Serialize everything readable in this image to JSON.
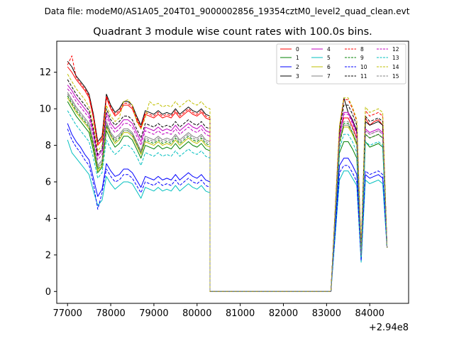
{
  "suptitle": "Data file: modeM0/AS1A05_204T01_9000002856_19354cztM0_level2_quad_clean.evt",
  "chart_data": {
    "type": "line",
    "title": "Quadrant 3 module wise count rates with 100.0s bins.",
    "xlabel": "",
    "ylabel": "",
    "x_offset_label": "+2.94e8",
    "xlim": [
      76750,
      84900
    ],
    "ylim": [
      -0.65,
      13.7
    ],
    "xticks": [
      77000,
      78000,
      79000,
      80000,
      81000,
      82000,
      83000,
      84000
    ],
    "xtick_labels": [
      "77000",
      "78000",
      "79000",
      "80000",
      "81000",
      "82000",
      "83000",
      "84000"
    ],
    "yticks": [
      0,
      2,
      4,
      6,
      8,
      10,
      12
    ],
    "ytick_labels": [
      "0",
      "2",
      "4",
      "6",
      "8",
      "10",
      "12"
    ],
    "legend_location": "top-right",
    "legend_columns": 4,
    "segments": [
      {
        "x_start": 77000,
        "x_end": 80300,
        "step": 100
      },
      {
        "x_start": 80300,
        "x_end": 83100,
        "step": 100
      },
      {
        "x_start": 83100,
        "x_end": 84500,
        "step": 100
      }
    ],
    "series": [
      {
        "name": "0",
        "color": "#ff0000",
        "dashed": false,
        "seg1": [
          12.3,
          12.0,
          11.6,
          11.3,
          11.0,
          10.6,
          9.5,
          8.0,
          8.3,
          10.6,
          10.0,
          9.6,
          9.8,
          10.2,
          10.2,
          10.0,
          9.4,
          8.9,
          9.7,
          9.6,
          9.5,
          9.7,
          9.5,
          9.6,
          9.5,
          9.8,
          9.5,
          9.7,
          9.9,
          9.7,
          9.6,
          9.8,
          9.5,
          9.4
        ],
        "seg3": [
          8.7,
          9.5,
          9.5,
          9.0,
          8.4,
          2.2,
          9.5,
          9.1,
          9.3,
          9.4,
          9.1,
          2.4
        ]
      },
      {
        "name": "1",
        "color": "#008000",
        "dashed": false,
        "seg1": [
          10.4,
          10.0,
          9.6,
          9.3,
          9.0,
          8.7,
          7.7,
          6.5,
          6.8,
          8.8,
          8.3,
          7.9,
          8.1,
          8.5,
          8.5,
          8.3,
          7.8,
          7.3,
          8.0,
          7.9,
          7.8,
          8.0,
          7.8,
          7.9,
          7.8,
          8.1,
          7.8,
          8.0,
          8.2,
          8.0,
          7.9,
          8.1,
          7.8,
          7.7
        ],
        "seg3": [
          7.6,
          8.2,
          8.2,
          7.8,
          7.3,
          1.8,
          8.2,
          7.9,
          8.0,
          8.1,
          7.9,
          2.4
        ]
      },
      {
        "name": "2",
        "color": "#0000ff",
        "dashed": false,
        "seg1": [
          9.2,
          8.6,
          8.2,
          7.9,
          7.5,
          7.2,
          6.2,
          5.2,
          5.6,
          7.0,
          6.6,
          6.3,
          6.4,
          6.7,
          6.7,
          6.5,
          6.1,
          5.7,
          6.3,
          6.2,
          6.1,
          6.3,
          6.1,
          6.2,
          6.1,
          6.4,
          6.1,
          6.3,
          6.5,
          6.3,
          6.2,
          6.4,
          6.1,
          6.0
        ],
        "seg3": [
          6.9,
          7.3,
          7.3,
          6.9,
          6.4,
          1.8,
          6.4,
          6.2,
          6.3,
          6.4,
          6.2,
          2.4
        ]
      },
      {
        "name": "3",
        "color": "#000000",
        "dashed": false,
        "seg1": [
          12.6,
          12.3,
          11.8,
          11.5,
          11.2,
          10.8,
          9.7,
          8.2,
          8.5,
          10.8,
          10.2,
          9.8,
          10.0,
          10.4,
          10.4,
          10.2,
          9.6,
          9.1,
          9.9,
          9.8,
          9.7,
          9.9,
          9.7,
          9.8,
          9.7,
          10.0,
          9.7,
          9.9,
          10.1,
          9.9,
          9.8,
          10.0,
          9.7,
          9.6
        ],
        "seg3": [
          8.9,
          10.6,
          9.8,
          9.4,
          8.8,
          2.0,
          9.3,
          9.1,
          9.2,
          9.3,
          9.1,
          2.4
        ]
      },
      {
        "name": "4",
        "color": "#bf00bf",
        "dashed": false,
        "seg1": [
          11.3,
          11.0,
          10.6,
          10.3,
          10.0,
          9.7,
          8.7,
          7.4,
          7.7,
          9.8,
          9.2,
          8.9,
          9.1,
          9.4,
          9.4,
          9.2,
          8.7,
          8.2,
          9.0,
          8.9,
          8.8,
          9.0,
          8.8,
          8.9,
          8.8,
          9.1,
          8.8,
          9.0,
          9.2,
          9.0,
          8.9,
          9.1,
          8.8,
          8.7
        ],
        "seg3": [
          8.5,
          9.8,
          9.8,
          9.3,
          8.7,
          2.1,
          8.9,
          8.7,
          8.8,
          8.9,
          8.7,
          2.4
        ]
      },
      {
        "name": "5",
        "color": "#00bfbf",
        "dashed": false,
        "seg1": [
          8.3,
          7.6,
          7.3,
          7.0,
          6.7,
          6.4,
          5.5,
          4.7,
          5.0,
          6.3,
          5.9,
          5.6,
          5.8,
          6.0,
          6.0,
          5.9,
          5.5,
          5.1,
          5.7,
          5.6,
          5.5,
          5.7,
          5.5,
          5.6,
          5.5,
          5.8,
          5.5,
          5.7,
          5.9,
          5.7,
          5.6,
          5.8,
          5.5,
          5.4
        ],
        "seg3": [
          6.1,
          6.6,
          6.6,
          6.2,
          5.8,
          1.6,
          6.1,
          5.9,
          6.0,
          6.1,
          5.9,
          2.4
        ]
      },
      {
        "name": "6",
        "color": "#bfbf00",
        "dashed": false,
        "seg1": [
          10.6,
          10.2,
          9.8,
          9.5,
          9.2,
          8.9,
          7.9,
          6.6,
          6.9,
          9.0,
          8.5,
          8.1,
          8.3,
          8.7,
          8.7,
          8.5,
          8.0,
          7.5,
          8.2,
          8.1,
          8.0,
          8.2,
          8.0,
          8.1,
          8.0,
          8.3,
          8.0,
          8.2,
          8.4,
          8.2,
          8.1,
          8.3,
          8.0,
          7.9
        ],
        "seg3": [
          8.2,
          9.0,
          9.0,
          8.6,
          8.0,
          1.9,
          8.6,
          8.4,
          8.5,
          8.6,
          8.4,
          2.4
        ]
      },
      {
        "name": "7",
        "color": "#808080",
        "dashed": false,
        "seg1": [
          10.9,
          10.5,
          10.1,
          9.8,
          9.5,
          9.2,
          8.2,
          6.9,
          7.2,
          9.3,
          8.7,
          8.4,
          8.6,
          8.9,
          8.9,
          8.7,
          8.2,
          7.7,
          8.5,
          8.4,
          8.3,
          8.5,
          8.3,
          8.4,
          8.3,
          8.6,
          8.3,
          8.5,
          8.7,
          8.5,
          8.4,
          8.6,
          8.3,
          8.2
        ],
        "seg3": [
          8.3,
          9.1,
          9.1,
          8.7,
          8.1,
          2.0,
          8.6,
          8.4,
          8.5,
          8.6,
          8.4,
          2.4
        ]
      },
      {
        "name": "8",
        "color": "#ff0000",
        "dashed": true,
        "seg1": [
          12.4,
          12.9,
          11.7,
          11.4,
          11.1,
          10.7,
          9.6,
          8.1,
          8.4,
          10.7,
          10.1,
          9.7,
          9.9,
          10.3,
          10.3,
          10.1,
          9.5,
          9.0,
          9.8,
          9.7,
          9.6,
          9.8,
          9.6,
          9.7,
          9.6,
          9.9,
          9.6,
          9.8,
          10.0,
          9.8,
          9.7,
          9.9,
          9.6,
          9.5
        ],
        "seg3": [
          9.0,
          10.5,
          10.5,
          10.0,
          9.3,
          2.3,
          9.9,
          9.6,
          9.7,
          9.8,
          9.6,
          2.4
        ]
      },
      {
        "name": "9",
        "color": "#008000",
        "dashed": true,
        "seg1": [
          10.7,
          10.3,
          9.9,
          9.6,
          9.3,
          9.0,
          8.0,
          6.7,
          7.0,
          9.1,
          8.6,
          8.2,
          8.4,
          8.8,
          8.8,
          8.6,
          8.1,
          7.6,
          8.3,
          8.2,
          8.1,
          8.3,
          8.1,
          8.2,
          8.1,
          8.4,
          8.1,
          8.3,
          8.5,
          8.3,
          8.2,
          8.4,
          8.1,
          8.0
        ],
        "seg3": [
          8.0,
          9.2,
          9.2,
          8.7,
          8.1,
          2.0,
          8.6,
          8.4,
          8.5,
          8.6,
          8.4,
          2.4
        ]
      },
      {
        "name": "10",
        "color": "#0000ff",
        "dashed": true,
        "seg1": [
          8.9,
          8.3,
          7.9,
          7.6,
          7.2,
          6.9,
          5.9,
          4.5,
          5.4,
          6.7,
          6.3,
          6.0,
          6.1,
          6.4,
          6.4,
          6.2,
          5.8,
          5.4,
          6.0,
          5.9,
          5.8,
          6.0,
          5.8,
          5.9,
          5.8,
          6.1,
          5.8,
          6.0,
          6.2,
          6.0,
          5.9,
          6.1,
          5.8,
          5.7
        ],
        "seg3": [
          6.5,
          6.9,
          6.9,
          6.5,
          6.0,
          1.7,
          6.6,
          6.4,
          6.5,
          6.6,
          6.4,
          2.4
        ]
      },
      {
        "name": "11",
        "color": "#000000",
        "dashed": true,
        "seg1": [
          11.6,
          11.2,
          10.8,
          10.5,
          10.2,
          9.9,
          8.9,
          7.5,
          7.8,
          10.0,
          9.4,
          9.1,
          9.3,
          9.6,
          9.6,
          9.4,
          8.9,
          8.4,
          9.2,
          9.1,
          9.0,
          9.2,
          9.0,
          9.1,
          9.0,
          9.3,
          9.0,
          9.2,
          9.4,
          9.2,
          9.1,
          9.3,
          9.0,
          8.9
        ],
        "seg3": [
          8.8,
          10.2,
          10.2,
          9.7,
          9.1,
          2.2,
          9.6,
          9.3,
          9.4,
          9.5,
          9.3,
          2.4
        ]
      },
      {
        "name": "12",
        "color": "#bf00bf",
        "dashed": true,
        "seg1": [
          11.1,
          10.8,
          10.4,
          10.1,
          9.8,
          9.5,
          8.5,
          7.2,
          7.5,
          9.6,
          9.0,
          8.7,
          8.9,
          9.2,
          9.2,
          9.0,
          8.5,
          8.0,
          8.8,
          8.7,
          8.6,
          8.8,
          8.6,
          8.7,
          8.6,
          8.9,
          8.6,
          8.8,
          9.0,
          8.8,
          8.7,
          8.9,
          8.6,
          8.5
        ],
        "seg3": [
          8.4,
          9.7,
          9.7,
          9.2,
          8.6,
          2.1,
          8.8,
          8.6,
          8.7,
          8.8,
          8.6,
          2.4
        ]
      },
      {
        "name": "13",
        "color": "#00bfbf",
        "dashed": true,
        "seg1": [
          9.9,
          9.5,
          9.1,
          8.8,
          8.5,
          8.2,
          7.3,
          6.2,
          6.5,
          8.3,
          7.8,
          7.5,
          7.7,
          8.0,
          8.0,
          7.8,
          7.4,
          6.9,
          7.6,
          7.5,
          7.4,
          7.6,
          7.4,
          7.5,
          7.4,
          7.7,
          7.4,
          7.6,
          7.8,
          7.6,
          7.5,
          7.7,
          7.4,
          7.3
        ],
        "seg3": [
          7.8,
          8.6,
          8.6,
          8.2,
          7.6,
          1.9,
          8.2,
          8.0,
          8.1,
          8.2,
          8.0,
          2.4
        ]
      },
      {
        "name": "14",
        "color": "#bfbf00",
        "dashed": true,
        "seg1": [
          11.9,
          11.5,
          11.1,
          10.8,
          10.5,
          10.1,
          9.1,
          7.7,
          8.0,
          10.2,
          9.6,
          9.3,
          9.5,
          10.4,
          10.5,
          10.2,
          9.3,
          8.9,
          9.5,
          10.4,
          10.2,
          10.3,
          10.1,
          10.2,
          10.1,
          10.4,
          10.1,
          10.3,
          10.5,
          10.3,
          10.2,
          10.4,
          10.1,
          10.0
        ],
        "seg3": [
          9.1,
          10.6,
          10.6,
          10.1,
          9.4,
          2.3,
          10.1,
          9.8,
          9.9,
          10.0,
          9.8,
          2.4
        ]
      },
      {
        "name": "15",
        "color": "#808080",
        "dashed": true,
        "seg1": [
          10.8,
          10.4,
          10.0,
          9.7,
          9.4,
          9.1,
          8.1,
          6.8,
          7.1,
          9.2,
          8.6,
          8.3,
          8.5,
          8.8,
          8.8,
          8.6,
          8.1,
          7.6,
          8.4,
          8.3,
          8.2,
          8.4,
          8.2,
          8.3,
          8.2,
          8.5,
          8.2,
          8.4,
          8.6,
          8.4,
          8.3,
          8.5,
          8.2,
          8.1
        ],
        "seg3": [
          8.3,
          9.3,
          9.3,
          8.9,
          8.3,
          2.0,
          8.8,
          8.6,
          8.7,
          8.8,
          8.6,
          2.4
        ]
      }
    ]
  }
}
